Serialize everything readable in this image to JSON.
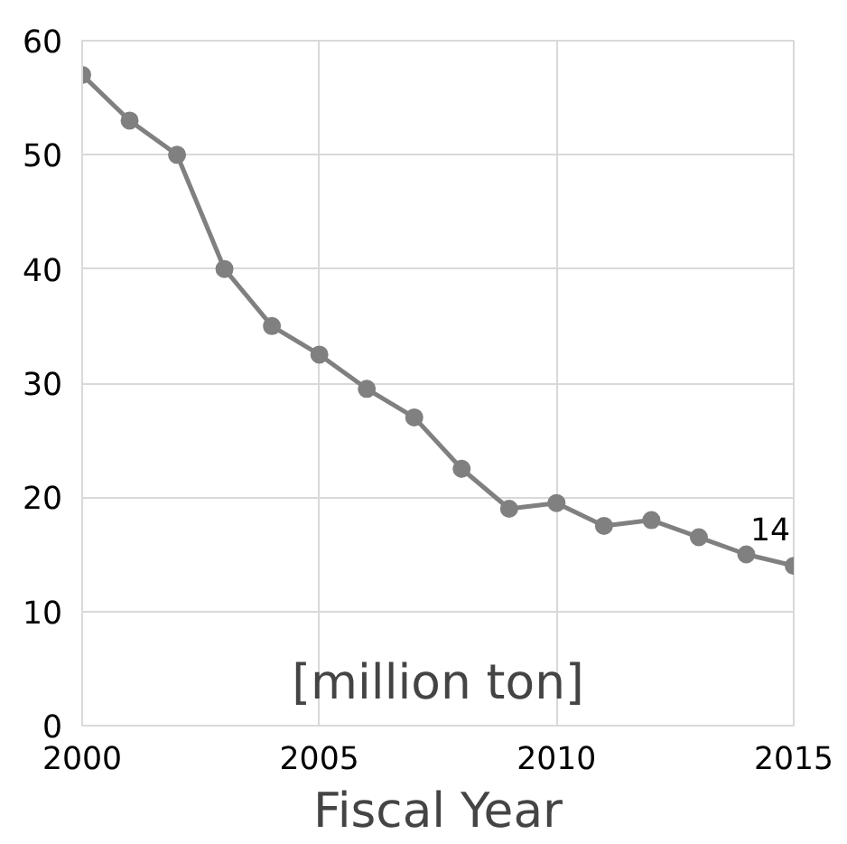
{
  "chart_data": {
    "type": "line",
    "xlabel": "Fiscal Year",
    "annotations": [
      "[million ton]"
    ],
    "x": [
      2000,
      2001,
      2002,
      2003,
      2004,
      2005,
      2006,
      2007,
      2008,
      2009,
      2010,
      2011,
      2012,
      2013,
      2014,
      2015
    ],
    "series": [
      {
        "color": "#808080",
        "values": [
          57,
          53,
          50,
          40,
          35,
          32.5,
          29.5,
          27,
          22.5,
          19,
          19.5,
          17.5,
          18,
          16.5,
          15,
          14
        ],
        "value_labels": [
          null,
          null,
          null,
          null,
          null,
          null,
          null,
          null,
          null,
          null,
          null,
          null,
          null,
          null,
          null,
          "14"
        ]
      }
    ],
    "xlim": [
      2000,
      2015
    ],
    "xticks": [
      2000,
      2005,
      2010,
      2015
    ],
    "ylim": [
      0,
      60
    ],
    "yticks": [
      0,
      10,
      20,
      30,
      40,
      50,
      60
    ],
    "grid": true,
    "marker": "circle",
    "line_style": "solid"
  }
}
